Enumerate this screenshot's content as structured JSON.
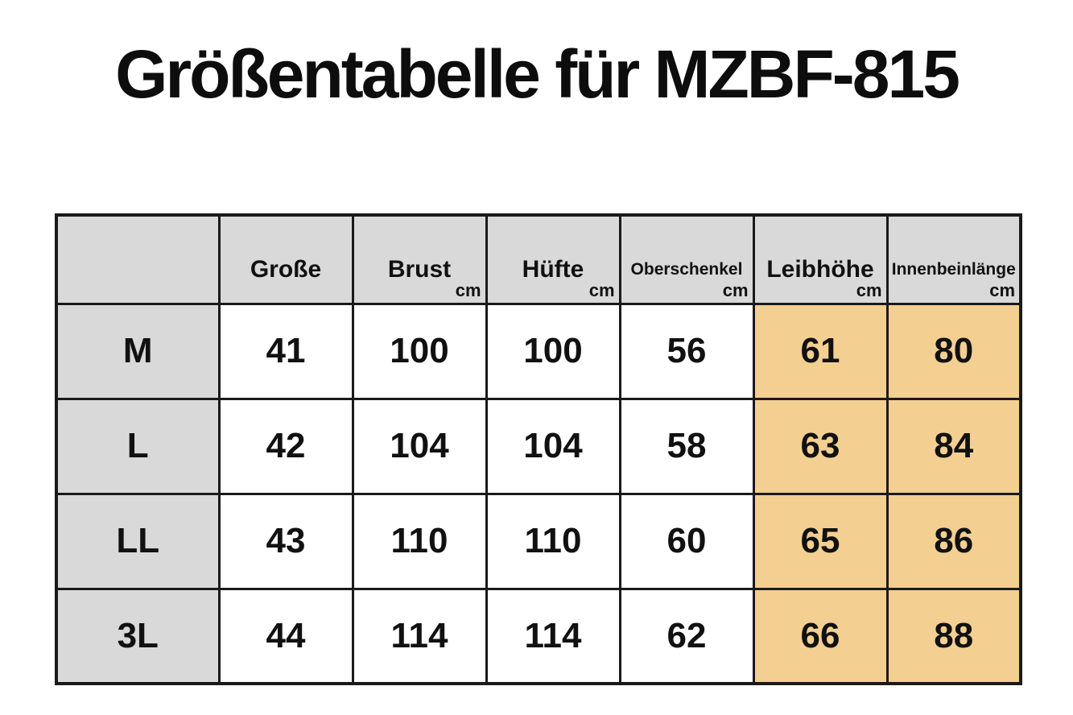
{
  "title": "Größentabelle für MZBF-815",
  "colors": {
    "page_bg": "#ffffff",
    "header_bg": "#d9d9d9",
    "highlight_bg": "#f3cf92",
    "border": "#1a1a1a",
    "text": "#111111"
  },
  "chart_data": {
    "type": "table",
    "title": "Größentabelle für MZBF-815",
    "columns": [
      {
        "label": "",
        "unit": ""
      },
      {
        "label": "Große",
        "unit": ""
      },
      {
        "label": "Brust",
        "unit": "cm"
      },
      {
        "label": "Hüfte",
        "unit": "cm"
      },
      {
        "label": "Oberschenkel",
        "unit": "cm"
      },
      {
        "label": "Leibhöhe",
        "unit": "cm"
      },
      {
        "label": "Innenbeinlänge",
        "unit": "cm"
      }
    ],
    "highlighted_columns": [
      "Leibhöhe",
      "Innenbeinlänge"
    ],
    "rows": [
      {
        "size": "M",
        "values": [
          "41",
          "100",
          "100",
          "56",
          "61",
          "80"
        ]
      },
      {
        "size": "L",
        "values": [
          "42",
          "104",
          "104",
          "58",
          "63",
          "84"
        ]
      },
      {
        "size": "LL",
        "values": [
          "43",
          "110",
          "110",
          "60",
          "65",
          "86"
        ]
      },
      {
        "size": "3L",
        "values": [
          "44",
          "114",
          "114",
          "62",
          "66",
          "88"
        ]
      }
    ]
  }
}
